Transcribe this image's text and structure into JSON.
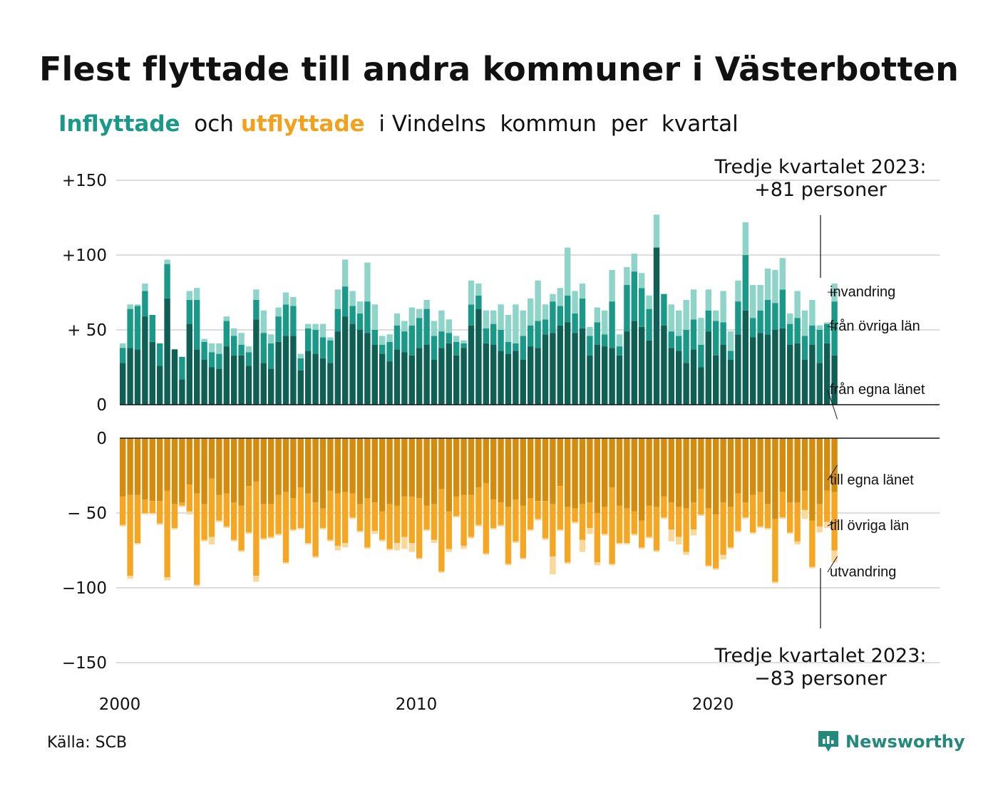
{
  "title": "Flest flyttade till andra kommuner i Västerbotten",
  "subtitle": {
    "in_word": "Inflyttade",
    "and_word": "och",
    "out_word": "utflyttade",
    "rest": "i Vindelns  kommun  per  kvartal"
  },
  "source": "Källa: SCB",
  "logo": {
    "text": "Newsworthy",
    "icon": "newsworthy-logo-icon"
  },
  "colors": {
    "in_own": "#0f5f55",
    "in_other": "#1a9988",
    "in_abroad": "#8fd4c9",
    "out_own": "#d38c0e",
    "out_other": "#f5a623",
    "out_abroad": "#f8d89b",
    "grid": "#dddddd",
    "axis": "#111111"
  },
  "chart_data": [
    {
      "type": "bar",
      "stacked": true,
      "panel": "top",
      "x_start_year": 2000,
      "period": "quarter",
      "x_ticks": [
        "2000",
        "2010",
        "2020"
      ],
      "y_ticks": [
        0,
        50,
        100,
        150
      ],
      "y_tick_labels": [
        "0",
        "+ 50",
        "+100",
        "+150"
      ],
      "ylim": [
        0,
        150
      ],
      "series": [
        {
          "name": "från egna länet",
          "values": [
            28,
            38,
            37,
            59,
            42,
            26,
            71,
            37,
            17,
            54,
            37,
            30,
            25,
            24,
            39,
            33,
            33,
            26,
            57,
            28,
            24,
            42,
            46,
            46,
            23,
            36,
            34,
            31,
            28,
            49,
            59,
            54,
            50,
            48,
            40,
            34,
            29,
            37,
            35,
            33,
            38,
            40,
            30,
            38,
            41,
            33,
            38,
            53,
            64,
            41,
            40,
            36,
            34,
            36,
            30,
            39,
            38,
            47,
            48,
            53,
            55,
            48,
            51,
            33,
            40,
            39,
            38,
            33,
            49,
            56,
            52,
            43,
            105,
            53,
            38,
            36,
            28,
            37,
            25,
            49,
            33,
            40,
            30,
            47,
            63,
            45,
            48,
            47,
            50,
            51,
            40,
            41,
            30,
            40,
            28,
            41,
            33
          ]
        },
        {
          "name": "från övriga län",
          "values": [
            10,
            26,
            29,
            17,
            18,
            15,
            23,
            0,
            15,
            16,
            33,
            12,
            10,
            10,
            17,
            13,
            7,
            9,
            13,
            20,
            17,
            17,
            21,
            20,
            8,
            15,
            16,
            14,
            15,
            15,
            20,
            12,
            11,
            21,
            10,
            6,
            13,
            16,
            14,
            20,
            20,
            24,
            16,
            11,
            7,
            9,
            3,
            14,
            9,
            10,
            14,
            14,
            8,
            5,
            16,
            14,
            18,
            10,
            21,
            13,
            18,
            13,
            20,
            13,
            15,
            8,
            31,
            6,
            31,
            33,
            26,
            21,
            0,
            21,
            11,
            10,
            22,
            20,
            15,
            14,
            23,
            15,
            6,
            22,
            37,
            13,
            15,
            23,
            18,
            26,
            14,
            17,
            16,
            13,
            22,
            13,
            36
          ]
        },
        {
          "name": "invandring",
          "values": [
            3,
            3,
            1,
            5,
            0,
            0,
            3,
            0,
            0,
            6,
            8,
            2,
            6,
            7,
            3,
            5,
            8,
            4,
            7,
            15,
            6,
            6,
            8,
            6,
            3,
            3,
            4,
            9,
            2,
            13,
            18,
            10,
            8,
            26,
            17,
            6,
            5,
            8,
            7,
            12,
            6,
            6,
            10,
            14,
            9,
            4,
            2,
            16,
            8,
            12,
            9,
            17,
            18,
            26,
            17,
            18,
            27,
            10,
            5,
            12,
            32,
            15,
            10,
            6,
            10,
            16,
            21,
            8,
            12,
            12,
            10,
            9,
            22,
            0,
            18,
            17,
            20,
            20,
            18,
            14,
            7,
            21,
            13,
            14,
            22,
            22,
            17,
            21,
            22,
            21,
            7,
            18,
            17,
            17,
            3,
            1,
            12
          ]
        }
      ],
      "annotation": {
        "title": "Tredje kvartalet 2023:",
        "value": "+81 personer"
      },
      "legend_labels": [
        "invandring",
        "från övriga län",
        "från egna länet"
      ]
    },
    {
      "type": "bar",
      "stacked": true,
      "panel": "bottom",
      "y_ticks": [
        0,
        -50,
        -100,
        -150
      ],
      "y_tick_labels": [
        "0",
        "− 50",
        "−100",
        "−150"
      ],
      "ylim": [
        -150,
        0
      ],
      "series": [
        {
          "name": "till egna länet",
          "values": [
            -39,
            -38,
            -38,
            -41,
            -42,
            -42,
            -35,
            -44,
            -43,
            -31,
            -37,
            -44,
            -27,
            -38,
            -37,
            -43,
            -45,
            -32,
            -29,
            -44,
            -44,
            -38,
            -36,
            -40,
            -33,
            -37,
            -43,
            -47,
            -35,
            -37,
            -36,
            -37,
            -44,
            -40,
            -43,
            -49,
            -44,
            -45,
            -39,
            -39,
            -40,
            -45,
            -44,
            -34,
            -49,
            -39,
            -38,
            -38,
            -33,
            -30,
            -41,
            -43,
            -46,
            -41,
            -45,
            -40,
            -42,
            -42,
            -44,
            -32,
            -46,
            -47,
            -44,
            -43,
            -50,
            -46,
            -33,
            -45,
            -47,
            -49,
            -55,
            -45,
            -46,
            -39,
            -43,
            -46,
            -47,
            -43,
            -34,
            -47,
            -51,
            -43,
            -46,
            -37,
            -43,
            -38,
            -36,
            -44,
            -54,
            -36,
            -43,
            -43,
            -35,
            -55,
            -44,
            -35,
            -36
          ]
        },
        {
          "name": "till övriga län",
          "values": [
            -19,
            -54,
            -32,
            -9,
            -8,
            -15,
            -58,
            -16,
            -2,
            -18,
            -61,
            -24,
            -39,
            -17,
            -22,
            -25,
            -30,
            -31,
            -63,
            -23,
            -22,
            -26,
            -47,
            -21,
            -27,
            -33,
            -36,
            -13,
            -33,
            -35,
            -34,
            -16,
            -18,
            -33,
            -19,
            -19,
            -30,
            -25,
            -27,
            -31,
            -40,
            -16,
            -24,
            -55,
            -25,
            -13,
            -34,
            -28,
            -25,
            -47,
            -19,
            -15,
            -38,
            -28,
            -35,
            -21,
            -12,
            -25,
            -35,
            -29,
            -37,
            -9,
            -24,
            -17,
            -33,
            -18,
            -51,
            -25,
            -23,
            -15,
            -18,
            -21,
            -29,
            -14,
            -18,
            -20,
            -29,
            -18,
            -17,
            -38,
            -36,
            -35,
            -27,
            -25,
            -10,
            -25,
            -23,
            -16,
            -42,
            -17,
            -20,
            -26,
            -13,
            -31,
            -15,
            -21,
            -39
          ]
        },
        {
          "name": "utvandring",
          "values": [
            -1,
            -2,
            -1,
            -1,
            -1,
            -1,
            -2,
            -1,
            -1,
            -2,
            -1,
            -1,
            -5,
            -1,
            -1,
            -1,
            -1,
            -1,
            -4,
            -1,
            -1,
            -1,
            -1,
            -1,
            -1,
            -1,
            -1,
            -1,
            -1,
            -3,
            -3,
            -1,
            -1,
            -1,
            -2,
            -1,
            -1,
            -5,
            -8,
            -6,
            -1,
            -1,
            -2,
            -1,
            -2,
            -1,
            -2,
            -1,
            -1,
            -1,
            -1,
            -1,
            -1,
            -1,
            -1,
            -1,
            -1,
            -1,
            -12,
            -1,
            -1,
            -1,
            -8,
            -4,
            -2,
            -1,
            -1,
            -1,
            -1,
            -1,
            -1,
            -1,
            -1,
            -1,
            -8,
            -5,
            -2,
            -4,
            -1,
            -1,
            -1,
            -3,
            -1,
            -1,
            -1,
            -1,
            -1,
            -1,
            -1,
            -1,
            -1,
            -2,
            -6,
            -1,
            -4,
            -4,
            -8
          ]
        }
      ],
      "annotation": {
        "title": "Tredje kvartalet 2023:",
        "value": "−83 personer"
      },
      "legend_labels": [
        "till egna länet",
        "till övriga län",
        "utvandring"
      ]
    }
  ]
}
